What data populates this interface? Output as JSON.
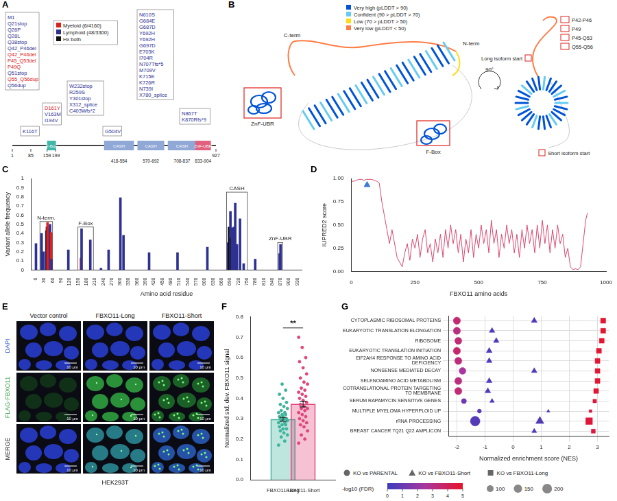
{
  "diagrams": {
    "A": {
      "letter": "A",
      "protein_length": 927,
      "legend": [
        {
          "label": "Myeloid (6/4160)",
          "color": "#e0201b"
        },
        {
          "label": "Lymphoid (48/3300)",
          "color": "#2e3192"
        },
        {
          "label": "Hx both",
          "color": "#111111"
        }
      ],
      "domains": [
        {
          "name": "F-Box",
          "start": 159,
          "end": 199,
          "color": "#3fb6a8"
        },
        {
          "name": "CASH",
          "start": 418,
          "end": 554,
          "color": "#8fa8d6",
          "range_label": "418-554"
        },
        {
          "name": "CASH",
          "start": 570,
          "end": 692,
          "color": "#8fa8d6",
          "range_label": "570-692"
        },
        {
          "name": "CASH",
          "start": 708,
          "end": 837,
          "color": "#8fa8d6",
          "range_label": "708-837"
        },
        {
          "name": "ZnF-UBR",
          "start": 833,
          "end": 904,
          "color": "#e0607e",
          "range_label": "833-904"
        }
      ],
      "markers": [
        1,
        85,
        159,
        199,
        927
      ],
      "mutation_groups": [
        [
          {
            "text": "M1",
            "color": "#2e3192"
          },
          {
            "text": "Q21stop",
            "color": "#2e3192"
          },
          {
            "text": "Q26P",
            "color": "#2e3192"
          },
          {
            "text": "Q28L",
            "color": "#2e3192"
          },
          {
            "text": "Q38stop",
            "color": "#2e3192"
          },
          {
            "text": "Q42_P46del",
            "color": "#2e3192"
          },
          {
            "text": "Q42_P46del",
            "color": "#e0201b"
          },
          {
            "text": "P45_Q53del",
            "color": "#e0201b"
          },
          {
            "text": "P49Q",
            "color": "#e0201b"
          },
          {
            "text": "Q51stop",
            "color": "#2e3192"
          },
          {
            "text": "Q55_Q56dup",
            "color": "#e0201b"
          },
          {
            "text": "Q56dup",
            "color": "#2e3192"
          }
        ],
        [
          {
            "text": "K116T",
            "color": "#2e3192"
          }
        ],
        [
          {
            "text": "D161Y",
            "color": "#e0201b"
          },
          {
            "text": "V163M",
            "color": "#2e3192"
          },
          {
            "text": "I194V",
            "color": "#2e3192"
          }
        ],
        [
          {
            "text": "W232stop",
            "color": "#2e3192"
          },
          {
            "text": "R259S",
            "color": "#2e3192"
          },
          {
            "text": "Y301stop",
            "color": "#2e3192"
          },
          {
            "text": "X312_splice",
            "color": "#2e3192"
          },
          {
            "text": "C403Wfs*2",
            "color": "#2e3192"
          }
        ],
        [
          {
            "text": "G504V",
            "color": "#2e3192"
          }
        ],
        [
          {
            "text": "N610S",
            "color": "#2e3192"
          },
          {
            "text": "G684E",
            "color": "#2e3192"
          },
          {
            "text": "G687D",
            "color": "#2e3192"
          },
          {
            "text": "Y692H",
            "color": "#2e3192"
          },
          {
            "text": "Y692H",
            "color": "#2e3192"
          },
          {
            "text": "G697D",
            "color": "#2e3192"
          },
          {
            "text": "E703K",
            "color": "#2e3192"
          },
          {
            "text": "I704R",
            "color": "#2e3192"
          },
          {
            "text": "N707Tfs*5",
            "color": "#2e3192"
          },
          {
            "text": "M709V",
            "color": "#2e3192"
          },
          {
            "text": "K715E",
            "color": "#2e3192"
          },
          {
            "text": "K726R",
            "color": "#2e3192"
          },
          {
            "text": "N739I",
            "color": "#2e3192"
          },
          {
            "text": "X780_splice",
            "color": "#2e3192"
          }
        ],
        [
          {
            "text": "N867T",
            "color": "#2e3192"
          },
          {
            "text": "K870Rfs*9",
            "color": "#2e3192"
          }
        ]
      ]
    },
    "B": {
      "letter": "B",
      "plddt_legend": [
        {
          "label": "Very high (pLDDT > 90)",
          "color": "#0053d6"
        },
        {
          "label": "Confident (90 > pLDDT > 70)",
          "color": "#65cbf3"
        },
        {
          "label": "Low (70 > pLDDT > 50)",
          "color": "#ffdb13"
        },
        {
          "label": "Very low (pLDDT < 50)",
          "color": "#ff7d45"
        }
      ],
      "structure_labels": {
        "znf": "ZnF-UBR",
        "cterm": "C-term",
        "nterm": "N-term",
        "fbox": "F-Box"
      },
      "rotation_label": "90°",
      "site_labels": [
        "P42-P46",
        "P49",
        "P45-Q53",
        "Q55-Q56"
      ],
      "isoform_labels": {
        "long": "Long isoform start",
        "short": "Short isoform start"
      }
    },
    "E": {
      "letter": "E",
      "columns": [
        "Vector control",
        "FBXO11-Long",
        "FBXO11-Short"
      ],
      "rows": [
        "DAPI",
        "FLAG-FBXO11",
        "MERGE"
      ],
      "cell_line": "HEK293T",
      "scale_bar": "10 μm"
    }
  },
  "chart_data": [
    {
      "panel": "C",
      "type": "bar",
      "x_label": "Amino acid residue",
      "y_label": "Variant allele frequency",
      "x": [
        1,
        21,
        26,
        28,
        38,
        40,
        42,
        45,
        49,
        51,
        55,
        56,
        116,
        161,
        163,
        194,
        232,
        259,
        301,
        312,
        403,
        504,
        610,
        684,
        687,
        692,
        694,
        697,
        703,
        704,
        707,
        709,
        715,
        726,
        739,
        780,
        867,
        870
      ],
      "values": [
        0.29,
        0.4,
        0.12,
        0.2,
        0.43,
        0.47,
        0.52,
        0.46,
        0.36,
        0.5,
        0.41,
        0.12,
        0.22,
        0.13,
        0.45,
        0.33,
        0.02,
        0.22,
        0.79,
        0.38,
        0.19,
        0.19,
        0.25,
        0.3,
        0.47,
        0.64,
        0.35,
        0.46,
        0.35,
        0.47,
        0.3,
        0.73,
        0.28,
        0.56,
        0.07,
        0.12,
        0.18,
        0.28
      ],
      "colors": [
        "#2e3192",
        "#2e3192",
        "#2e3192",
        "#2e3192",
        "#2e3192",
        "#111111",
        "#e0201b",
        "#e0201b",
        "#e0201b",
        "#2e3192",
        "#e0201b",
        "#2e3192",
        "#2e3192",
        "#e0201b",
        "#2e3192",
        "#2e3192",
        "#2e3192",
        "#2e3192",
        "#2e3192",
        "#2e3192",
        "#2e3192",
        "#2e3192",
        "#2e3192",
        "#2e3192",
        "#111111",
        "#2e3192",
        "#111111",
        "#2e3192",
        "#2e3192",
        "#2e3192",
        "#2e3192",
        "#2e3192",
        "#2e3192",
        "#2e3192",
        "#2e3192",
        "#2e3192",
        "#2e3192",
        "#2e3192"
      ],
      "regions": [
        {
          "label": "N-term.",
          "start": 15,
          "end": 60,
          "top": 0.53
        },
        {
          "label": "F-Box",
          "start": 150,
          "end": 205,
          "top": 0.47
        },
        {
          "label": "CASH",
          "start": 678,
          "end": 752,
          "top": 0.85
        },
        {
          "label": "ZnF-UBR",
          "start": 860,
          "end": 878,
          "top": 0.3
        }
      ],
      "xlim": [
        0,
        930
      ],
      "xticks": [
        0,
        30,
        60,
        90,
        120,
        150,
        180,
        210,
        240,
        270,
        300,
        330,
        360,
        390,
        420,
        450,
        480,
        510,
        540,
        570,
        600,
        630,
        660,
        690,
        720,
        750,
        780,
        810,
        840,
        870,
        900,
        930
      ],
      "ylim": [
        0,
        1
      ],
      "yticks": [
        0,
        0.1,
        0.2,
        0.3,
        0.4,
        0.5,
        0.6,
        0.7,
        0.8,
        0.9,
        1
      ],
      "grid": false
    },
    {
      "panel": "D",
      "type": "line",
      "x_label": "FBXO11 amino acids",
      "y_label": "IUPRED2 score",
      "color": "#d9486f",
      "x": [
        1,
        10,
        20,
        30,
        40,
        50,
        60,
        70,
        80,
        90,
        100,
        110,
        120,
        130,
        140,
        150,
        160,
        170,
        180,
        190,
        200,
        210,
        220,
        230,
        240,
        250,
        260,
        270,
        280,
        290,
        300,
        310,
        320,
        330,
        340,
        350,
        360,
        370,
        380,
        390,
        400,
        410,
        420,
        430,
        440,
        450,
        460,
        470,
        480,
        490,
        500,
        510,
        520,
        530,
        540,
        550,
        560,
        570,
        580,
        590,
        600,
        610,
        620,
        630,
        640,
        650,
        660,
        670,
        680,
        690,
        700,
        710,
        720,
        730,
        740,
        750,
        760,
        770,
        780,
        790,
        800,
        810,
        820,
        830,
        840,
        850,
        860,
        870,
        880,
        890,
        900,
        910,
        920,
        927
      ],
      "values": [
        0.97,
        0.97,
        0.98,
        0.99,
        0.99,
        0.98,
        0.99,
        0.99,
        0.99,
        0.98,
        0.97,
        0.95,
        0.75,
        0.6,
        0.45,
        0.3,
        0.45,
        0.3,
        0.15,
        0.1,
        0.05,
        0.2,
        0.3,
        0.12,
        0.35,
        0.25,
        0.4,
        0.15,
        0.35,
        0.45,
        0.2,
        0.3,
        0.1,
        0.35,
        0.2,
        0.4,
        0.15,
        0.45,
        0.25,
        0.5,
        0.3,
        0.45,
        0.2,
        0.4,
        0.1,
        0.35,
        0.2,
        0.45,
        0.15,
        0.4,
        0.25,
        0.5,
        0.3,
        0.45,
        0.2,
        0.55,
        0.3,
        0.45,
        0.15,
        0.4,
        0.25,
        0.5,
        0.3,
        0.45,
        0.2,
        0.4,
        0.15,
        0.45,
        0.25,
        0.5,
        0.3,
        0.45,
        0.2,
        0.5,
        0.25,
        0.55,
        0.3,
        0.5,
        0.2,
        0.45,
        0.25,
        0.5,
        0.3,
        0.4,
        0.15,
        0.25,
        0.05,
        0.02,
        0.03,
        0.02,
        0.05,
        0.3,
        0.55,
        0.63
      ],
      "highlight": {
        "x": 62,
        "y": 0.93,
        "color": "#3d7bd6",
        "marker": "triangle"
      },
      "xlim": [
        0,
        1000
      ],
      "xticks": [
        0,
        250,
        500,
        750,
        1000
      ],
      "ylim": [
        0,
        1
      ],
      "yticks": [
        {
          "value": 0,
          "label": "0.00"
        },
        {
          "value": 0.25,
          "label": "0.25"
        },
        {
          "value": 0.5,
          "label": "0.50"
        },
        {
          "value": 0.75,
          "label": "0.75"
        },
        {
          "value": 1,
          "label": "1.00"
        }
      ],
      "grid": false
    },
    {
      "panel": "F",
      "type": "bar",
      "y_label": "Normalized std. dev. FBXO11 signal",
      "categories": [
        "FBXO11-Long",
        "FBXO11-Short"
      ],
      "values": [
        0.297,
        0.372
      ],
      "errors": [
        0.009,
        0.014
      ],
      "colors": [
        "#3fb39c",
        "#e0457b"
      ],
      "points": [
        [
          0.17,
          0.19,
          0.21,
          0.22,
          0.23,
          0.24,
          0.25,
          0.25,
          0.26,
          0.27,
          0.27,
          0.28,
          0.28,
          0.29,
          0.29,
          0.3,
          0.3,
          0.3,
          0.31,
          0.31,
          0.32,
          0.32,
          0.33,
          0.33,
          0.34,
          0.35,
          0.36,
          0.37,
          0.38,
          0.4,
          0.42,
          0.44,
          0.47
        ],
        [
          0.18,
          0.2,
          0.22,
          0.24,
          0.26,
          0.27,
          0.28,
          0.29,
          0.3,
          0.31,
          0.32,
          0.33,
          0.34,
          0.35,
          0.35,
          0.36,
          0.37,
          0.38,
          0.39,
          0.4,
          0.41,
          0.42,
          0.43,
          0.44,
          0.45,
          0.47,
          0.48,
          0.5,
          0.52,
          0.55,
          0.58,
          0.6,
          0.65,
          0.7
        ]
      ],
      "significance": "**",
      "ylim": [
        0,
        0.8
      ],
      "yticks": [
        {
          "value": 0,
          "label": "0.0"
        },
        {
          "value": 0.1,
          "label": "0.1"
        },
        {
          "value": 0.2,
          "label": "0.2"
        },
        {
          "value": 0.3,
          "label": "0.3"
        },
        {
          "value": 0.4,
          "label": "0.4"
        },
        {
          "value": 0.5,
          "label": "0.5"
        },
        {
          "value": 0.6,
          "label": "0.6"
        },
        {
          "value": 0.7,
          "label": "0.7"
        },
        {
          "value": 0.8,
          "label": "0.8"
        }
      ],
      "grid": false
    },
    {
      "panel": "G",
      "type": "scatter",
      "x_label": "Normalized enrichment score (NES)",
      "categories": [
        "CYTOPLASMIC RIBOSOMAL PROTEINS",
        "EUKARYOTIC TRANSLATION ELONGATION",
        "RIBOSOME",
        "EUKARYOTIC TRANSLATION INITIATION",
        "EIF2AK4 RESPONSE TO AMINO ACID DEFICIENCY",
        "NONSENSE MEDIATED DECAY",
        "SELENOAMINO ACID METABOLISM",
        "COTRANSLATIONAL PROTEIN TARGETING TO MEMBRANE",
        "SERUM RAPAMYCIN SENSITIVE GENES",
        "MULTIPLE MYELOMA HYPERPLOID UP",
        "rRNA PROCESSING",
        "BREAST CANCER 7Q21 Q22 AMPLICON"
      ],
      "series": [
        {
          "name": "KO vs PARENTAL",
          "marker": "circle",
          "values": [
            -2.0,
            -2.0,
            -1.95,
            -2.0,
            -1.95,
            -1.8,
            -1.95,
            -1.95,
            -1.75,
            -1.2,
            -1.35,
            null
          ],
          "fdr": [
            3.5,
            3.2,
            3.4,
            3.6,
            3.3,
            2.5,
            3.2,
            3.4,
            1.2,
            0.8,
            0.6,
            null
          ],
          "size": [
            110,
            110,
            105,
            110,
            110,
            100,
            110,
            110,
            55,
            35,
            200,
            null
          ]
        },
        {
          "name": "KO vs FBXO11-Short",
          "marker": "triangle",
          "values": [
            0.75,
            -0.75,
            -0.6,
            -0.85,
            -0.85,
            0.75,
            -0.85,
            -0.9,
            -0.75,
            1.25,
            0.95,
            0.75
          ],
          "fdr": [
            0.5,
            0.4,
            0.4,
            0.5,
            0.4,
            0.5,
            0.4,
            0.4,
            0.3,
            0.3,
            0.5,
            0.4
          ],
          "size": [
            100,
            90,
            90,
            95,
            95,
            90,
            95,
            95,
            60,
            30,
            190,
            70
          ]
        },
        {
          "name": "KO vs FBXO11-Long",
          "marker": "square",
          "values": [
            3.2,
            3.2,
            3.15,
            3.05,
            3.0,
            3.0,
            3.0,
            2.95,
            2.9,
            2.75,
            2.7,
            2.85
          ],
          "fdr": [
            4.8,
            4.8,
            4.8,
            4.8,
            4.8,
            4.8,
            4.8,
            4.8,
            4.6,
            4.5,
            4.7,
            4.5
          ],
          "size": [
            110,
            105,
            100,
            105,
            100,
            100,
            100,
            100,
            55,
            35,
            190,
            70
          ]
        }
      ],
      "colorbar": {
        "title": "-log10 (FDR)",
        "range": [
          0,
          5
        ],
        "ticks": [
          0,
          1,
          2,
          3,
          4,
          5
        ]
      },
      "size_legend": [
        100,
        150,
        200
      ],
      "xlim": [
        -2.3,
        3.4
      ],
      "xticks": [
        -2,
        -1,
        0,
        1,
        2,
        3
      ],
      "grid": true,
      "legend": "bottom"
    }
  ]
}
